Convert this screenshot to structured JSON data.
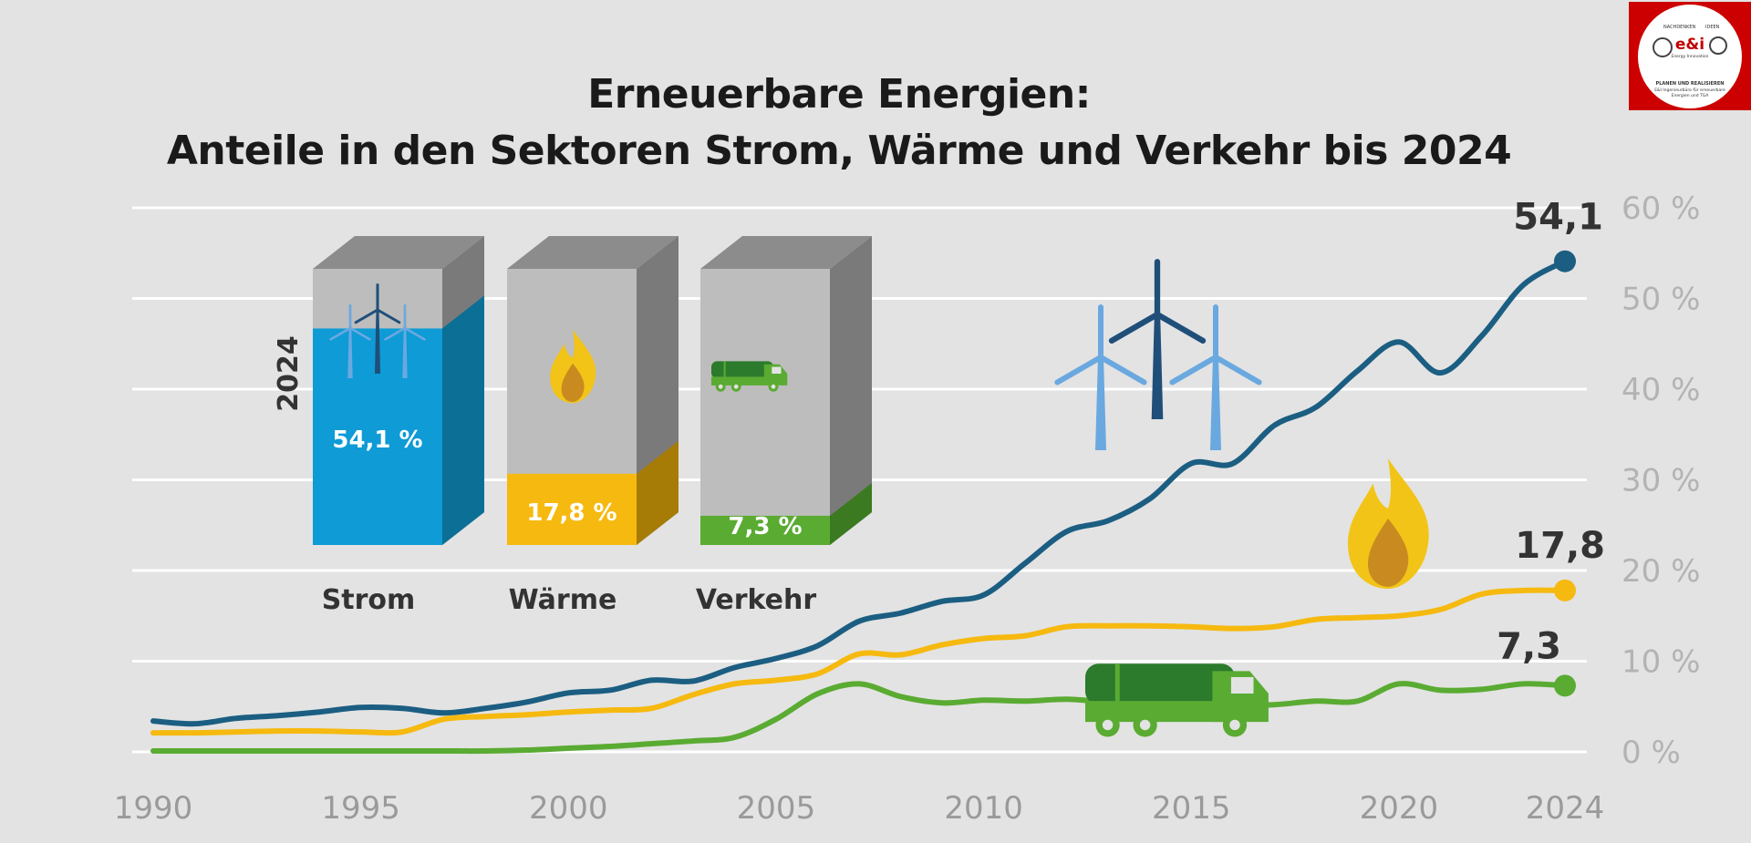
{
  "title": {
    "line1": "Erneuerbare Energien:",
    "line2": "Anteile in den Sektoren Strom, Wärme und Verkehr bis 2024"
  },
  "logo": {
    "top_left": "NACHDENKEN",
    "top_right": "IDEEN",
    "brand": "e&i",
    "sub": "Energy Innovation",
    "line1": "PLANEN UND REALISIEREN",
    "line2": "E&I Ingenieurbüro für erneuerbare",
    "line3": "Energien und TGA"
  },
  "chart_data": {
    "type": "line",
    "title": "Erneuerbare Energien: Anteile in den Sektoren Strom, Wärme und Verkehr bis 2024",
    "x_ticks": [
      "1990",
      "1995",
      "2000",
      "2005",
      "2010",
      "2015",
      "2020",
      "2024"
    ],
    "y_ticks": [
      "0 %",
      "10 %",
      "20 %",
      "30 %",
      "40 %",
      "50 %",
      "60 %"
    ],
    "xlim": [
      1990,
      2024
    ],
    "ylim": [
      0,
      60
    ],
    "grid": true,
    "y_axis_position": "right",
    "x": [
      1990,
      1991,
      1992,
      1993,
      1994,
      1995,
      1996,
      1997,
      1998,
      1999,
      2000,
      2001,
      2002,
      2003,
      2004,
      2005,
      2006,
      2007,
      2008,
      2009,
      2010,
      2011,
      2012,
      2013,
      2014,
      2015,
      2016,
      2017,
      2018,
      2019,
      2020,
      2021,
      2022,
      2023,
      2024
    ],
    "series": [
      {
        "key": "strom",
        "color": "#1b5e82",
        "end_label": "54,1",
        "values": [
          3.4,
          3.1,
          3.7,
          4.0,
          4.4,
          4.9,
          4.8,
          4.3,
          4.8,
          5.5,
          6.5,
          6.8,
          7.9,
          7.8,
          9.3,
          10.3,
          11.7,
          14.4,
          15.3,
          16.6,
          17.3,
          20.8,
          24.3,
          25.5,
          27.9,
          31.8,
          31.8,
          36.0,
          38.0,
          42.0,
          45.2,
          41.8,
          45.9,
          51.5,
          54.1
        ]
      },
      {
        "key": "waerme",
        "color": "#f6b90f",
        "end_label": "17,8",
        "values": [
          2.1,
          2.1,
          2.2,
          2.3,
          2.3,
          2.2,
          2.2,
          3.6,
          3.9,
          4.1,
          4.4,
          4.6,
          4.8,
          6.3,
          7.5,
          7.9,
          8.6,
          10.8,
          10.7,
          11.8,
          12.5,
          12.8,
          13.8,
          13.9,
          13.9,
          13.8,
          13.6,
          13.8,
          14.6,
          14.8,
          15.0,
          15.7,
          17.4,
          17.8,
          17.8
        ]
      },
      {
        "key": "verkehr",
        "color": "#5aab32",
        "end_label": "7,3",
        "values": [
          0.1,
          0.1,
          0.1,
          0.1,
          0.1,
          0.1,
          0.1,
          0.1,
          0.1,
          0.2,
          0.4,
          0.6,
          0.9,
          1.2,
          1.6,
          3.6,
          6.4,
          7.5,
          6.1,
          5.4,
          5.7,
          5.6,
          5.8,
          5.5,
          5.6,
          5.3,
          5.1,
          5.2,
          5.6,
          5.6,
          7.5,
          6.8,
          6.9,
          7.5,
          7.3
        ]
      }
    ],
    "bars_2024": {
      "year_label": "2024",
      "items": [
        {
          "key": "strom",
          "name": "Strom",
          "value": 54.1,
          "label": "54,1 %",
          "color": "#0e9bd6",
          "side": "#0b6f96",
          "icon": "wind-turbine-icon"
        },
        {
          "key": "waerme",
          "name": "Wärme",
          "value": 17.8,
          "label": "17,8 %",
          "color": "#f6b90f",
          "side": "#a67c07",
          "icon": "flame-icon"
        },
        {
          "key": "verkehr",
          "name": "Verkehr",
          "value": 7.3,
          "label": "7,3 %",
          "color": "#5aab32",
          "side": "#3b7a20",
          "icon": "tanker-truck-icon"
        }
      ]
    }
  }
}
